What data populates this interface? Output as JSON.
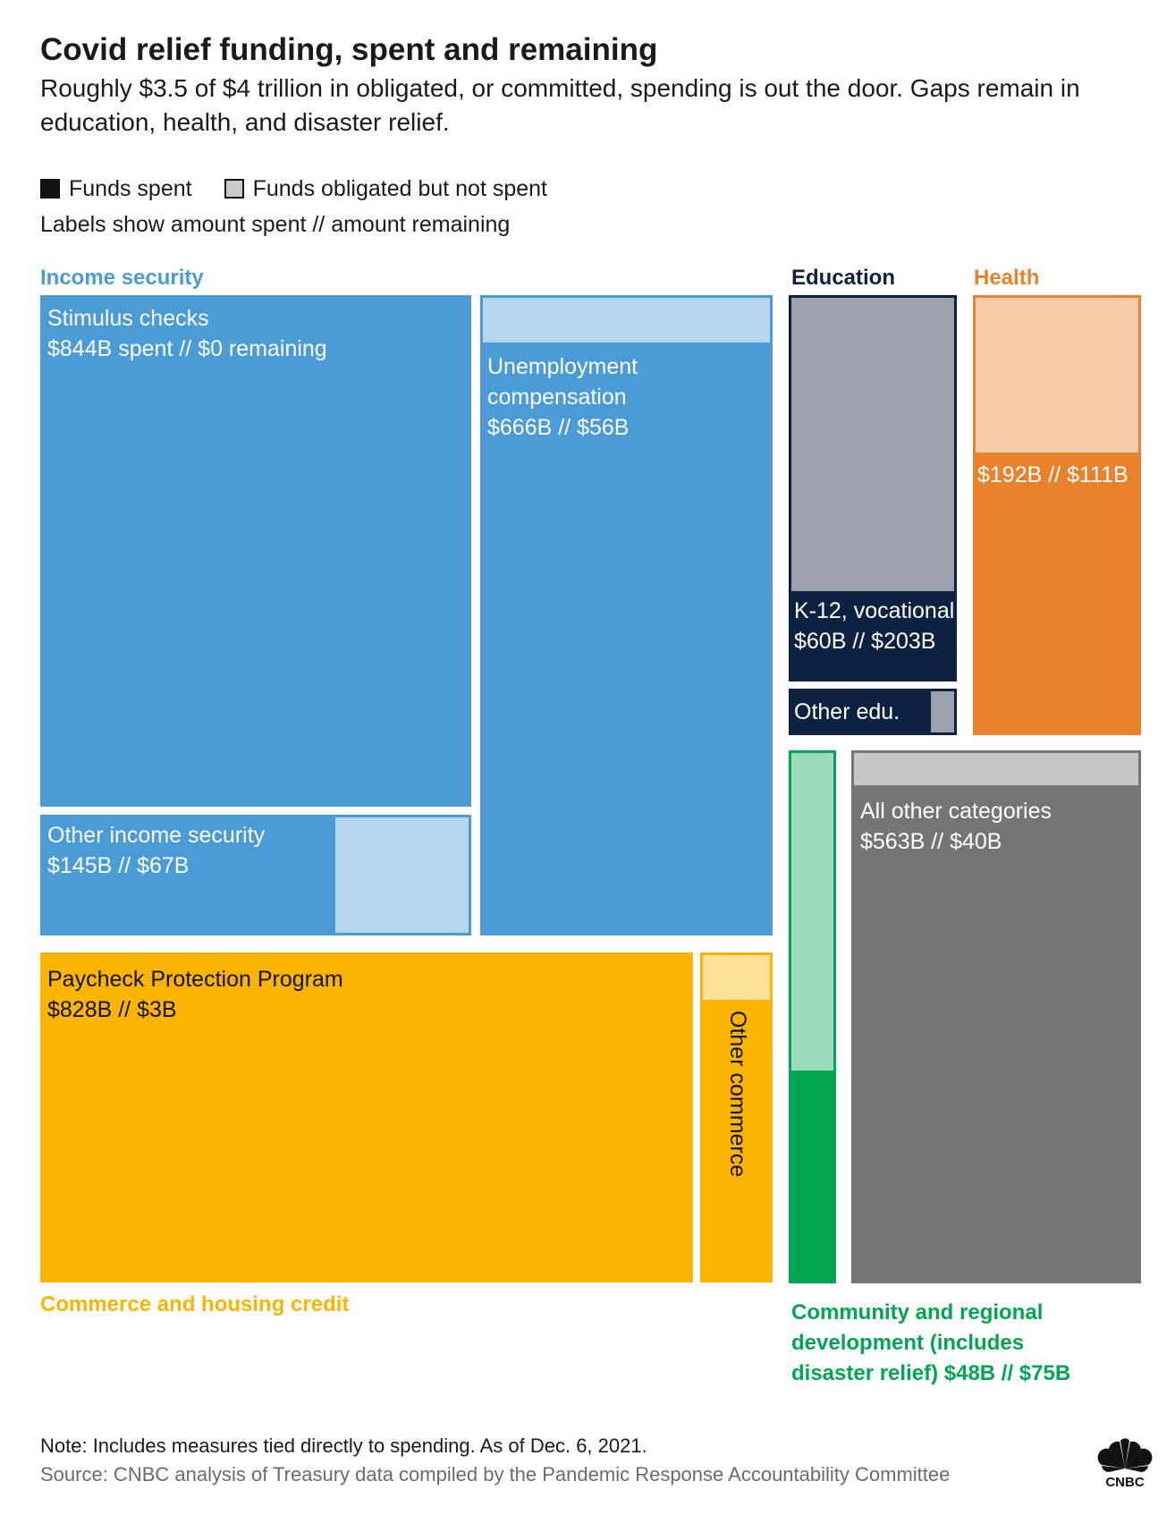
{
  "header": {
    "title": "Covid relief funding, spent and remaining",
    "subtitle": "Roughly $3.5 of $4 trillion in obligated, or committed, spending is out the door. Gaps remain in education, health, and disaster relief."
  },
  "legend": {
    "spent": "Funds spent",
    "remaining": "Funds obligated but not spent",
    "note": "Labels show amount spent // amount remaining"
  },
  "footer": {
    "note": "Note: Includes measures tied directly to spending. As of Dec. 6, 2021.",
    "source": "Source: CNBC analysis of Treasury data compiled by the Pandemic Response Accountability Committee",
    "logo_text": "CNBC"
  },
  "chart_data": {
    "type": "treemap",
    "units": "billions USD",
    "categories": [
      {
        "name": "Income security",
        "color": "#4a9bd6",
        "color_remaining": "#b6d5ee",
        "items": [
          {
            "name": "Stimulus checks",
            "spent": 844,
            "remaining": 0,
            "label": "$844B spent // $0 remaining"
          },
          {
            "name": "Unemployment compensation",
            "name_lines": [
              "Unemployment",
              "compensation"
            ],
            "spent": 666,
            "remaining": 56,
            "label": "$666B // $56B"
          },
          {
            "name": "Other income security",
            "spent": 145,
            "remaining": 67,
            "label": "$145B // $67B"
          }
        ]
      },
      {
        "name": "Commerce and housing credit",
        "color": "#fbb500",
        "color_remaining": "#fde196",
        "items": [
          {
            "name": "Paycheck Protection Program",
            "spent": 828,
            "remaining": 3,
            "label": "$828B // $3B"
          },
          {
            "name": "Other commerce"
          }
        ]
      },
      {
        "name": "Education",
        "color": "#0d2240",
        "color_remaining": "#9da3ad",
        "items": [
          {
            "name": "K-12, vocational",
            "spent": 60,
            "remaining": 203,
            "label": "$60B // $203B"
          },
          {
            "name": "Other edu."
          }
        ]
      },
      {
        "name": "Health",
        "color": "#e8822d",
        "color_remaining": "#f6ccaa",
        "items": [
          {
            "name": "Health",
            "spent": 192,
            "remaining": 111,
            "label": "$192B // $111B"
          }
        ]
      },
      {
        "name": "Community and regional development (includes disaster relief)",
        "name_lines": [
          "Community and regional",
          "development (includes",
          "disaster relief) $48B // $75B"
        ],
        "color": "#00a651",
        "color_remaining": "#9bdbbc",
        "items": [
          {
            "name": "Community and regional development",
            "spent": 48,
            "remaining": 75
          }
        ]
      },
      {
        "name": "All other categories",
        "color": "#757575",
        "color_remaining": "#c7c7c7",
        "items": [
          {
            "name": "All other categories",
            "spent": 563,
            "remaining": 40,
            "label": "$563B // $40B"
          }
        ]
      }
    ]
  }
}
